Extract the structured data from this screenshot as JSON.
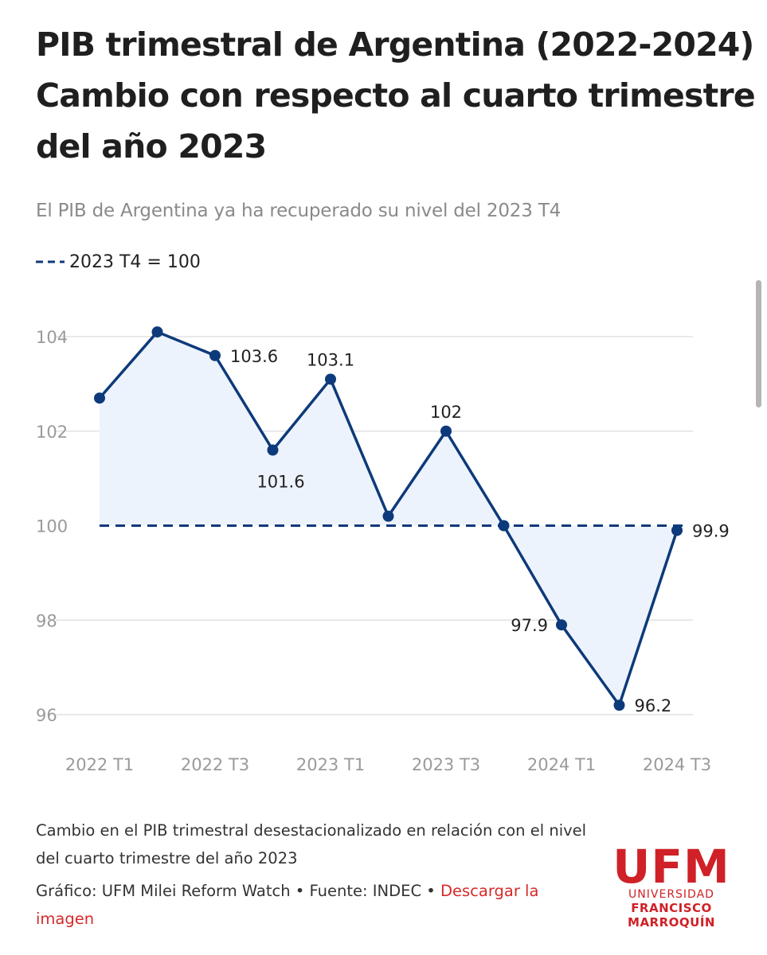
{
  "header": {
    "title_line1": "PIB trimestral de Argentina (2022-2024)",
    "title_line2": "Cambio con respecto al cuarto trimestre",
    "title_line3": "del año 2023",
    "subtitle": "El PIB de Argentina ya ha recuperado su nivel del 2023 T4"
  },
  "legend": {
    "label": "2023 T4 = 100"
  },
  "chart_data": {
    "type": "area",
    "categories": [
      "2022 T1",
      "2022 T2",
      "2022 T3",
      "2022 T4",
      "2023 T1",
      "2023 T2",
      "2023 T3",
      "2023 T4",
      "2024 T1",
      "2024 T2",
      "2024 T3"
    ],
    "x_tick_labels": [
      "2022 T1",
      "2022 T3",
      "2023 T1",
      "2023 T3",
      "2024 T1",
      "2024 T3"
    ],
    "values": [
      102.7,
      104.1,
      103.6,
      101.6,
      103.1,
      100.2,
      102,
      100,
      97.9,
      96.2,
      99.9
    ],
    "data_labels": [
      "",
      "",
      "103.6",
      "",
      "103.1",
      "",
      "102",
      "",
      "97.9",
      "96.2",
      "99.9"
    ],
    "data_label_positions": [
      "",
      "",
      "right",
      "below",
      "above",
      "",
      "above",
      "",
      "left",
      "right",
      "right"
    ],
    "data_labels_text": {
      "label_3": "101.6"
    },
    "y_ticks": [
      96,
      98,
      100,
      102,
      104
    ],
    "ylim": [
      96,
      104
    ],
    "reference_line": {
      "value": 100,
      "style": "dashed",
      "name": "2023 T4 = 100"
    },
    "grid": true,
    "colors": {
      "line": "#0d3a7a",
      "fill": "#edf3fc",
      "grid": "#e2e2e2"
    }
  },
  "footer": {
    "note": "Cambio en el PIB trimestral desestacionalizado en relación con el nivel del cuarto trimestre del año 2023",
    "source_prefix": "Gráfico: UFM Milei Reform Watch • Fuente: INDEC • ",
    "download_link": "Descargar la imagen"
  },
  "logo": {
    "main": "UFM",
    "line1": "UNIVERSIDAD",
    "line2": "FRANCISCO",
    "line3": "MARROQUÍN",
    "color": "#cf2127"
  }
}
